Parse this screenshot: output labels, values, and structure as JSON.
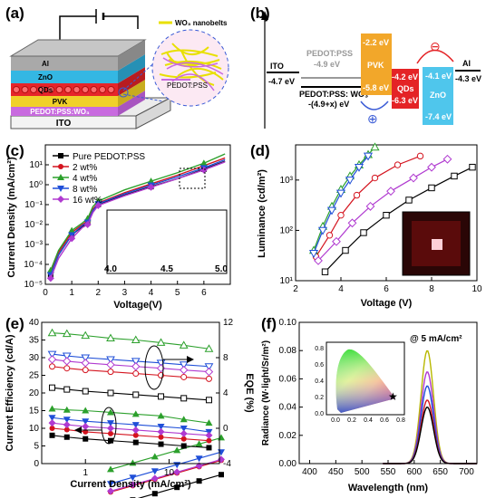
{
  "panels": {
    "a": {
      "label": "(a)",
      "layers": [
        "Al",
        "ZnO",
        "QDs",
        "PVK",
        "PEDOT:PSS:WO₃",
        "ITO"
      ],
      "inset_labels": {
        "nanobelts": "WO₃ nanobelts",
        "pedot": "PEDOT:PSS"
      },
      "colors": {
        "al": "#a9a9a9",
        "zno": "#34b7e3",
        "qds": "#e6252a",
        "pvk": "#f0d02a",
        "pedot": "#c86adf",
        "ito": "#e8e8e8"
      }
    },
    "b": {
      "label": "(b)",
      "ito": {
        "name": "ITO",
        "level": "-4.7 eV"
      },
      "pedot": {
        "name": "PEDOT:PSS",
        "level": "-4.9 eV",
        "wo3_name": "PEDOT:PSS: WO₃",
        "wo3_level": "-(4.9+x) eV"
      },
      "pvk": {
        "name": "PVK",
        "lumo": "-2.2 eV",
        "homo": "-5.8 eV"
      },
      "qds": {
        "name": "QDs",
        "lumo": "-4.2 eV",
        "homo": "-6.3 eV"
      },
      "zno": {
        "name": "ZnO",
        "lumo": "-4.1 eV",
        "homo": "-7.4 eV"
      },
      "al": {
        "name": "Al",
        "level": "-4.3 eV"
      },
      "electron_symbol": "⊖",
      "hole_symbol": "⊕"
    },
    "c": {
      "label": "(c)",
      "xlabel": "Voltage(V)",
      "ylabel": "Current Density (mA/cm²)",
      "inset_ticks": [
        "4.0",
        "4.5",
        "5.0"
      ]
    },
    "d": {
      "label": "(d)",
      "xlabel": "Voltage (V)",
      "ylabel": "Luminance (cd/m²)"
    },
    "e": {
      "label": "(e)",
      "xlabel": "Current Density (mA/cm²)",
      "ylabel_left": "Current Efficiency (cd/A)",
      "ylabel_right": "EQE (%)"
    },
    "f": {
      "label": "(f)",
      "xlabel": "Wavelength (nm)",
      "ylabel": "Radiance (W·light/Sr/m²)",
      "annotation": "@ 5 mA/cm²",
      "cie_ticks_x": [
        "0.0",
        "0.2",
        "0.4",
        "0.6",
        "0.8"
      ],
      "cie_ticks_y": [
        "0.0",
        "0.2",
        "0.4",
        "0.6",
        "0.8"
      ]
    }
  },
  "chart_data": [
    {
      "type": "line",
      "panel": "c",
      "title": "",
      "xlabel": "Voltage(V)",
      "ylabel": "Current Density (mA/cm²)",
      "xlim": [
        0,
        7
      ],
      "ylim": [
        1e-05,
        100
      ],
      "yscale": "log",
      "x_ticks": [
        0,
        1,
        2,
        3,
        4,
        5,
        6
      ],
      "y_ticks": [
        "10⁻⁵",
        "10⁻⁴",
        "10⁻³",
        "10⁻²",
        "10⁻¹",
        "10⁰",
        "10¹"
      ],
      "legend_position": "top-left",
      "series": [
        {
          "name": "Pure PEDOT:PSS",
          "color": "#000000",
          "marker": "square",
          "x": [
            0.2,
            0.5,
            1.0,
            1.4,
            1.6,
            1.8,
            2.0,
            3.0,
            4.0,
            5.0,
            6.0,
            6.8
          ],
          "y": [
            3e-05,
            0.0003,
            0.003,
            0.008,
            0.012,
            0.05,
            0.1,
            0.3,
            0.8,
            2.0,
            6.0,
            15.0
          ]
        },
        {
          "name": "2 wt%",
          "color": "#d4141f",
          "marker": "circle",
          "x": [
            0.2,
            0.5,
            1.0,
            1.4,
            1.6,
            1.8,
            2.0,
            3.0,
            4.0,
            5.0,
            6.0,
            6.8
          ],
          "y": [
            4e-05,
            0.0004,
            0.004,
            0.01,
            0.015,
            0.06,
            0.12,
            0.4,
            1.1,
            3.0,
            9.0,
            22.0
          ]
        },
        {
          "name": "4 wt%",
          "color": "#2ca02c",
          "marker": "triangle",
          "x": [
            0.2,
            0.5,
            1.0,
            1.4,
            1.6,
            1.8,
            2.0,
            3.0,
            4.0,
            5.0,
            6.0,
            6.8
          ],
          "y": [
            5e-05,
            0.0005,
            0.005,
            0.012,
            0.02,
            0.08,
            0.15,
            0.55,
            1.5,
            4.0,
            12.0,
            35.0
          ]
        },
        {
          "name": "8 wt%",
          "color": "#1f4fd8",
          "marker": "triangle-down",
          "x": [
            0.2,
            0.5,
            1.0,
            1.4,
            1.6,
            1.8,
            2.0,
            3.0,
            4.0,
            5.0,
            6.0,
            6.8
          ],
          "y": [
            3e-05,
            0.0003,
            0.003,
            0.009,
            0.013,
            0.05,
            0.11,
            0.35,
            0.95,
            2.5,
            7.0,
            18.0
          ]
        },
        {
          "name": "16 wt%",
          "color": "#b03ad0",
          "marker": "diamond",
          "x": [
            0.2,
            0.5,
            1.0,
            1.4,
            1.6,
            1.8,
            2.0,
            3.0,
            4.0,
            5.0,
            6.0,
            6.8
          ],
          "y": [
            2e-05,
            0.0002,
            0.002,
            0.007,
            0.01,
            0.04,
            0.09,
            0.28,
            0.75,
            2.0,
            5.5,
            14.0
          ]
        }
      ]
    },
    {
      "type": "line",
      "panel": "d",
      "title": "",
      "xlabel": "Voltage (V)",
      "ylabel": "Luminance (cd/m²)",
      "xlim": [
        2,
        10
      ],
      "ylim": [
        10,
        5000
      ],
      "yscale": "log",
      "x_ticks": [
        2,
        4,
        6,
        8,
        10
      ],
      "y_ticks": [
        "10¹",
        "10²",
        "10³"
      ],
      "series": [
        {
          "name": "Pure PEDOT:PSS",
          "color": "#000000",
          "marker": "square",
          "x": [
            3.3,
            4.2,
            5.0,
            6.0,
            7.0,
            8.0,
            9.0,
            9.8
          ],
          "y": [
            15,
            40,
            90,
            200,
            400,
            700,
            1200,
            1800
          ]
        },
        {
          "name": "2 wt%",
          "color": "#d4141f",
          "marker": "circle",
          "x": [
            2.9,
            3.5,
            4.0,
            4.7,
            5.5,
            6.5,
            7.5
          ],
          "y": [
            30,
            80,
            200,
            500,
            1100,
            2000,
            3000
          ]
        },
        {
          "name": "4 wt%",
          "color": "#2ca02c",
          "marker": "triangle",
          "x": [
            2.8,
            3.2,
            3.6,
            4.0,
            4.4,
            4.8,
            5.2,
            5.5
          ],
          "y": [
            40,
            120,
            300,
            650,
            1200,
            2000,
            3200,
            4500
          ]
        },
        {
          "name": "8 wt%",
          "color": "#1f4fd8",
          "marker": "triangle-down",
          "x": [
            2.8,
            3.2,
            3.6,
            4.0,
            4.4,
            4.8,
            5.2
          ],
          "y": [
            35,
            100,
            250,
            550,
            1000,
            1800,
            3000
          ]
        },
        {
          "name": "16 wt%",
          "color": "#b03ad0",
          "marker": "diamond",
          "x": [
            3.0,
            3.8,
            4.5,
            5.3,
            6.2,
            7.2,
            8.0,
            8.7
          ],
          "y": [
            25,
            60,
            140,
            300,
            600,
            1100,
            1800,
            2600
          ]
        }
      ]
    },
    {
      "type": "line",
      "panel": "e",
      "title": "",
      "xlabel": "Current Density (mA/cm²)",
      "ylabel": "Current Efficiency (cd/A)",
      "ylabel_right": "EQE (%)",
      "xscale": "log",
      "xlim": [
        0.3,
        40
      ],
      "ylim": [
        0,
        40
      ],
      "ylim_right": [
        -4,
        12
      ],
      "x_ticks": [
        "1",
        "10"
      ],
      "y_ticks": [
        0,
        5,
        10,
        15,
        20,
        25,
        30,
        35,
        40
      ],
      "y_ticks_right": [
        -4,
        0,
        4,
        8,
        12
      ],
      "series": [
        {
          "name": "Pure PEDOT:PSS (CE)",
          "color": "#000000",
          "marker": "square",
          "axis": "left",
          "x": [
            0.4,
            0.6,
            1,
            2,
            4,
            8,
            15,
            30
          ],
          "y": [
            8,
            7.5,
            7,
            6.5,
            6,
            5.5,
            5,
            4.5
          ]
        },
        {
          "name": "2 wt% (CE)",
          "color": "#d4141f",
          "marker": "circle",
          "axis": "left",
          "x": [
            0.4,
            0.6,
            1,
            2,
            4,
            8,
            15,
            30
          ],
          "y": [
            10,
            9.6,
            9,
            8.5,
            8,
            7.5,
            7,
            6.5
          ]
        },
        {
          "name": "4 wt% (CE)",
          "color": "#2ca02c",
          "marker": "triangle",
          "axis": "left",
          "x": [
            0.4,
            0.6,
            1,
            2,
            4,
            8,
            15,
            30
          ],
          "y": [
            15.5,
            15.2,
            15,
            14.5,
            14,
            13.5,
            12.5,
            11.5
          ]
        },
        {
          "name": "8 wt% (CE)",
          "color": "#1f4fd8",
          "marker": "triangle-down",
          "axis": "left",
          "x": [
            0.4,
            0.6,
            1,
            2,
            4,
            8,
            15,
            30
          ],
          "y": [
            13,
            12.5,
            12,
            11.5,
            11,
            10.5,
            10,
            9
          ]
        },
        {
          "name": "16 wt% (CE)",
          "color": "#b03ad0",
          "marker": "diamond",
          "axis": "left",
          "x": [
            0.4,
            0.6,
            1,
            2,
            4,
            8,
            15,
            30
          ],
          "y": [
            11.5,
            11,
            10.5,
            10,
            9.5,
            9,
            8.5,
            8
          ]
        },
        {
          "name": "Pure PEDOT:PSS (EQE)",
          "color": "#000000",
          "marker": "square-open",
          "axis": "right",
          "x": [
            0.4,
            0.6,
            1,
            2,
            4,
            8,
            15,
            30
          ],
          "y": [
            4.6,
            4.4,
            4.2,
            4.0,
            3.8,
            3.6,
            3.4,
            3.2
          ]
        },
        {
          "name": "2 wt% (EQE)",
          "color": "#d4141f",
          "marker": "circle-open",
          "axis": "right",
          "x": [
            0.4,
            0.6,
            1,
            2,
            4,
            8,
            15,
            30
          ],
          "y": [
            7.0,
            6.8,
            6.6,
            6.4,
            6.2,
            6.0,
            5.8,
            5.6
          ]
        },
        {
          "name": "4 wt% (EQE)",
          "color": "#2ca02c",
          "marker": "triangle-open",
          "axis": "right",
          "x": [
            0.4,
            0.6,
            1,
            2,
            4,
            8,
            15,
            30
          ],
          "y": [
            10.8,
            10.7,
            10.5,
            10.2,
            10.0,
            9.7,
            9.4,
            9.0
          ]
        },
        {
          "name": "8 wt% (EQE)",
          "color": "#1f4fd8",
          "marker": "triangle-down-open",
          "axis": "right",
          "x": [
            0.4,
            0.6,
            1,
            2,
            4,
            8,
            15,
            30
          ],
          "y": [
            8.4,
            8.2,
            8.0,
            7.8,
            7.6,
            7.4,
            7.2,
            7.0
          ]
        },
        {
          "name": "16 wt% (EQE)",
          "color": "#b03ad0",
          "marker": "diamond-open",
          "axis": "right",
          "x": [
            0.4,
            0.6,
            1,
            2,
            4,
            8,
            15,
            30
          ],
          "y": [
            7.8,
            7.6,
            7.4,
            7.2,
            7.0,
            6.8,
            6.6,
            6.4
          ]
        }
      ]
    },
    {
      "type": "line",
      "panel": "f",
      "title": "",
      "xlabel": "Wavelength (nm)",
      "ylabel": "Radiance (W·light/Sr/m²)",
      "xlim": [
        380,
        720
      ],
      "ylim": [
        0,
        0.1
      ],
      "x_ticks": [
        400,
        450,
        500,
        550,
        600,
        650,
        700
      ],
      "y_ticks": [
        0.0,
        0.02,
        0.04,
        0.06,
        0.08,
        0.1
      ],
      "peak_wavelength": 625,
      "series": [
        {
          "name": "4 wt%",
          "color": "#b8b800",
          "peak": 0.08
        },
        {
          "name": "2 wt%",
          "color": "#b03ad0",
          "peak": 0.065
        },
        {
          "name": "8 wt%",
          "color": "#1f4fd8",
          "peak": 0.055
        },
        {
          "name": "16 wt%",
          "color": "#d4141f",
          "peak": 0.045
        },
        {
          "name": "Pure PEDOT:PSS",
          "color": "#000000",
          "peak": 0.04
        }
      ]
    }
  ]
}
